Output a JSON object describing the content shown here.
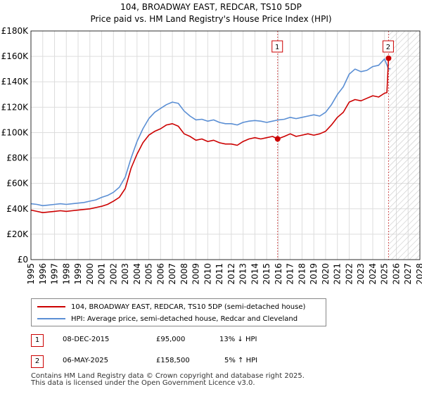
{
  "chart_data": {
    "type": "line",
    "title": "104, BROADWAY EAST, REDCAR, TS10 5DP",
    "subtitle": "Price paid vs. HM Land Registry's House Price Index (HPI)",
    "x_ticks": [
      "1995",
      "1996",
      "1997",
      "1998",
      "1999",
      "2000",
      "2001",
      "2002",
      "2003",
      "2004",
      "2005",
      "2006",
      "2007",
      "2008",
      "2009",
      "2010",
      "2011",
      "2012",
      "2013",
      "2014",
      "2015",
      "2016",
      "2017",
      "2018",
      "2019",
      "2020",
      "2021",
      "2022",
      "2023",
      "2024",
      "2025",
      "2026",
      "2027",
      "2028"
    ],
    "y_ticks": [
      "£0",
      "£20K",
      "£40K",
      "£60K",
      "£80K",
      "£100K",
      "£120K",
      "£140K",
      "£160K",
      "£180K"
    ],
    "xlim": [
      1995,
      2028
    ],
    "ylim": [
      0,
      180000
    ],
    "forecast_start": 2025.35,
    "series": [
      {
        "name": "104, BROADWAY EAST, REDCAR, TS10 5DP (semi-detached house)",
        "color": "#cc0000",
        "x": [
          1995.0,
          1995.5,
          1996.0,
          1996.5,
          1997.0,
          1997.5,
          1998.0,
          1998.5,
          1999.0,
          1999.5,
          2000.0,
          2000.5,
          2001.0,
          2001.5,
          2002.0,
          2002.5,
          2003.0,
          2003.5,
          2004.0,
          2004.5,
          2005.0,
          2005.5,
          2006.0,
          2006.5,
          2007.0,
          2007.5,
          2008.0,
          2008.5,
          2009.0,
          2009.5,
          2010.0,
          2010.5,
          2011.0,
          2011.5,
          2012.0,
          2012.5,
          2013.0,
          2013.5,
          2014.0,
          2014.5,
          2015.0,
          2015.5,
          2015.93,
          2016.5,
          2017.0,
          2017.5,
          2018.0,
          2018.5,
          2019.0,
          2019.5,
          2020.0,
          2020.5,
          2021.0,
          2021.5,
          2022.0,
          2022.5,
          2023.0,
          2023.5,
          2024.0,
          2024.5,
          2025.0,
          2025.2,
          2025.34,
          2025.5
        ],
        "values": [
          39000,
          38000,
          37000,
          37500,
          38000,
          38500,
          38000,
          38500,
          39000,
          39500,
          40000,
          41000,
          42000,
          43500,
          46000,
          49000,
          56000,
          72000,
          83000,
          92000,
          98000,
          101000,
          103000,
          106000,
          107000,
          105000,
          99000,
          97000,
          94000,
          95000,
          93000,
          94000,
          92000,
          91000,
          91000,
          90000,
          93000,
          95000,
          96000,
          95000,
          96000,
          97000,
          95000,
          97000,
          99000,
          97000,
          98000,
          99000,
          98000,
          99000,
          101000,
          106000,
          112000,
          116000,
          124000,
          126000,
          125000,
          127000,
          129000,
          128000,
          131000,
          131500,
          158500,
          159000
        ]
      },
      {
        "name": "HPI: Average price, semi-detached house, Redcar and Cleveland",
        "color": "#5b8fd4",
        "x": [
          1995.0,
          1995.5,
          1996.0,
          1996.5,
          1997.0,
          1997.5,
          1998.0,
          1998.5,
          1999.0,
          1999.5,
          2000.0,
          2000.5,
          2001.0,
          2001.5,
          2002.0,
          2002.5,
          2003.0,
          2003.5,
          2004.0,
          2004.5,
          2005.0,
          2005.5,
          2006.0,
          2006.5,
          2007.0,
          2007.5,
          2008.0,
          2008.5,
          2009.0,
          2009.5,
          2010.0,
          2010.5,
          2011.0,
          2011.5,
          2012.0,
          2012.5,
          2013.0,
          2013.5,
          2014.0,
          2014.5,
          2015.0,
          2015.5,
          2016.0,
          2016.5,
          2017.0,
          2017.5,
          2018.0,
          2018.5,
          2019.0,
          2019.5,
          2020.0,
          2020.5,
          2021.0,
          2021.5,
          2022.0,
          2022.5,
          2023.0,
          2023.5,
          2024.0,
          2024.5,
          2025.0,
          2025.34,
          2025.5
        ],
        "values": [
          44000,
          43500,
          42500,
          43000,
          43500,
          44000,
          43500,
          44000,
          44500,
          45000,
          46000,
          47000,
          49000,
          50500,
          53000,
          57000,
          65000,
          80000,
          93000,
          103000,
          111000,
          116000,
          119000,
          122000,
          124000,
          123000,
          117000,
          113000,
          110000,
          110500,
          109000,
          110000,
          108000,
          107000,
          107000,
          106000,
          108000,
          109000,
          109500,
          109000,
          108000,
          109000,
          110000,
          110500,
          112000,
          111000,
          112000,
          113000,
          114000,
          113000,
          116000,
          122000,
          130000,
          136000,
          146000,
          150000,
          148000,
          149000,
          152000,
          153000,
          158000,
          150000,
          150500
        ]
      }
    ],
    "markers": [
      {
        "label": "1",
        "x": 2015.93,
        "value": 95000
      },
      {
        "label": "2",
        "x": 2025.34,
        "value": 158500
      }
    ]
  },
  "legend": {
    "red_label": "104, BROADWAY EAST, REDCAR, TS10 5DP (semi-detached house)",
    "blue_label": "HPI: Average price, semi-detached house, Redcar and Cleveland"
  },
  "transactions": [
    {
      "num": "1",
      "date": "08-DEC-2015",
      "price": "£95,000",
      "delta": "13% ↓ HPI"
    },
    {
      "num": "2",
      "date": "06-MAY-2025",
      "price": "£158,500",
      "delta": "5% ↑ HPI"
    }
  ],
  "footer": {
    "line1": "Contains HM Land Registry data © Crown copyright and database right 2025.",
    "line2": "This data is licensed under the Open Government Licence v3.0."
  }
}
